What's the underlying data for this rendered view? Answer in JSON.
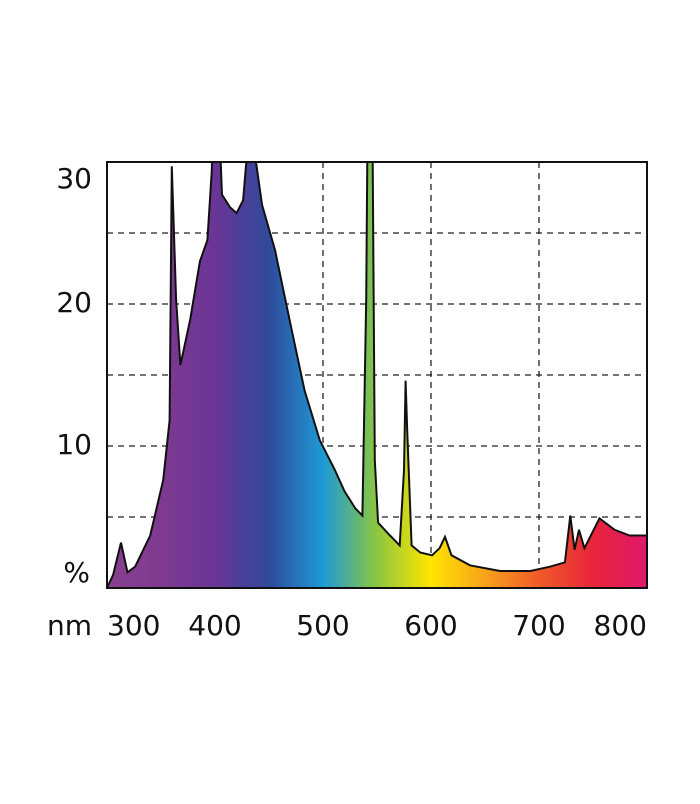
{
  "chart_data": {
    "type": "area",
    "x_label": "nm",
    "y_label": "%",
    "x": [
      300,
      305.6,
      313,
      319,
      326,
      340,
      352,
      358,
      360,
      364,
      368,
      377,
      386,
      393,
      397,
      400,
      406.5,
      414,
      420,
      426,
      429,
      433,
      438,
      443.5,
      455.6,
      469,
      483,
      497,
      511,
      520,
      530,
      536.5,
      540,
      542,
      546,
      548,
      551,
      562,
      571,
      575,
      576.5,
      578,
      582,
      590,
      601,
      608,
      613,
      619,
      636,
      664,
      692,
      710,
      724,
      729,
      733,
      737,
      742,
      756,
      770,
      784,
      800
    ],
    "values": [
      0,
      0.9,
      3.2,
      1.1,
      1.5,
      3.7,
      7.6,
      11.8,
      29.7,
      20.3,
      15.7,
      18.9,
      23,
      24.5,
      29.4,
      40,
      27.7,
      26.8,
      26.4,
      27.3,
      30,
      40,
      30,
      27,
      23.8,
      18.9,
      13.9,
      10.4,
      8.3,
      6.8,
      5.6,
      5.1,
      20.3,
      40,
      30,
      9,
      4.6,
      3.7,
      3.0,
      8.3,
      14.6,
      11.1,
      3,
      2.5,
      2.3,
      2.8,
      3.6,
      2.3,
      1.6,
      1.2,
      1.2,
      1.5,
      1.8,
      5.1,
      2.7,
      4.1,
      2.8,
      4.9,
      4.1,
      3.7,
      3.7
    ],
    "xlim": [
      300,
      800
    ],
    "ylim": [
      0,
      30
    ],
    "xticks": [
      300,
      400,
      500,
      600,
      700,
      800
    ],
    "yticks": [
      10,
      20,
      30
    ],
    "minor_yticks": [
      5,
      15,
      25
    ],
    "grid": true,
    "line_color": "#111111",
    "fill_gradient": [
      "#8a3f8f",
      "#7e3a90",
      "#6a3596",
      "#2f4a9b",
      "#1e9ad6",
      "#8cc63f",
      "#ffe600",
      "#f7a21b",
      "#ef5a28",
      "#e8253a",
      "#e0186e"
    ]
  }
}
